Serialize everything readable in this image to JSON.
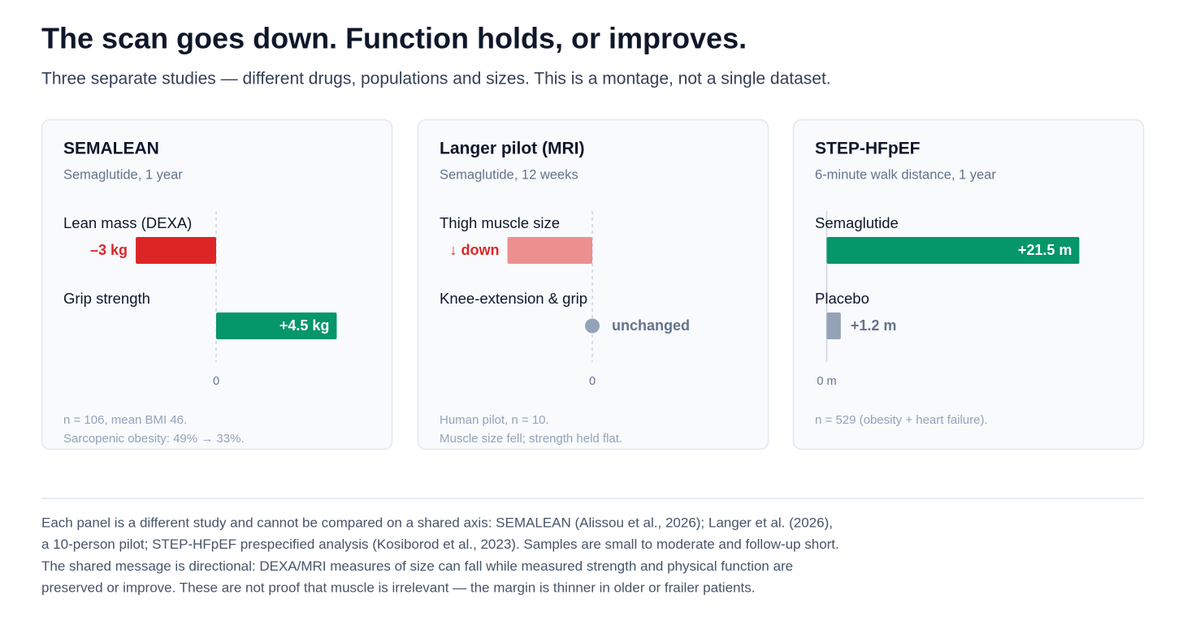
{
  "header": {
    "title": "The scan goes down. Function holds, or improves.",
    "subtitle": "Three separate studies — different drugs, populations and sizes. This is a montage, not a single dataset."
  },
  "chart_data": [
    {
      "type": "bar",
      "title": "SEMALEAN",
      "subtitle": "Semaglutide, 1 year",
      "categories": [
        "Lean mass (DEXA)",
        "Grip strength"
      ],
      "values": [
        -3,
        4.5
      ],
      "value_labels": [
        "–3 kg",
        "+4.5 kg"
      ],
      "colors": [
        "#dc2626",
        "#059669"
      ],
      "label_colors": [
        "#dc2626",
        "#ffffff"
      ],
      "xlim": [
        -5.7,
        5.7
      ],
      "xticks": [
        0
      ],
      "zero_line": "dashed",
      "notes": [
        "n = 106, mean BMI 46.",
        "Sarcopenic obesity: 49% → 33%."
      ]
    },
    {
      "type": "bar",
      "title": "Langer pilot (MRI)",
      "subtitle": "Semaglutide, 12 weeks",
      "categories": [
        "Thigh muscle size",
        "Knee-extension & grip"
      ],
      "values": [
        -1,
        0
      ],
      "value_labels": [
        "↓ down",
        "unchanged"
      ],
      "colors": [
        "#ec8f8f",
        "#94a3b8"
      ],
      "label_colors": [
        "#dc2626",
        "#64748b"
      ],
      "xlim": [
        -1.8,
        1.8
      ],
      "xticks": [
        0
      ],
      "zero_line": "dashed",
      "notes": [
        "Human pilot, n = 10.",
        "Muscle size fell; strength held flat."
      ]
    },
    {
      "type": "bar",
      "title": "STEP-HFpEF",
      "subtitle": "6-minute walk distance, 1 year",
      "categories": [
        "Semaglutide",
        "Placebo"
      ],
      "values": [
        21.5,
        1.2
      ],
      "value_labels": [
        "+21.5 m",
        "+1.2 m"
      ],
      "colors": [
        "#059669",
        "#94a3b8"
      ],
      "label_colors": [
        "#ffffff",
        "#64748b"
      ],
      "xlim": [
        -1,
        25
      ],
      "xticks": [
        {
          "value": 0,
          "label": "0 m"
        }
      ],
      "zero_line": "solid",
      "notes": [
        "n = 529 (obesity + heart failure)."
      ]
    }
  ],
  "footer": [
    "Each panel is a different study and cannot be compared on a shared axis: SEMALEAN (Alissou et al., 2026); Langer et al. (2026),",
    "a 10-person pilot; STEP-HFpEF prespecified analysis (Kosiborod et al., 2023). Samples are small to moderate and follow-up short.",
    "The shared message is directional: DEXA/MRI measures of size can fall while measured strength and physical function are",
    "preserved or improve. These are not proof that muscle is irrelevant — the margin is thinner in older or frailer patients."
  ]
}
